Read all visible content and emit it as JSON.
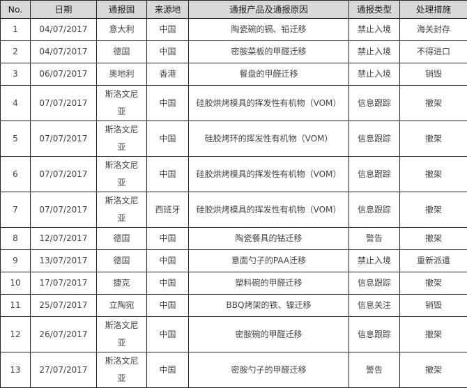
{
  "table": {
    "headers": [
      "No.",
      "日期",
      "通报国",
      "来源地",
      "通报产品及通报原因",
      "通报类型",
      "处理措施"
    ],
    "rows": [
      [
        "1",
        "04/07/2017",
        "意大利",
        "中国",
        "陶瓷碗的镉、铅迁移",
        "禁止入境",
        "海关封存"
      ],
      [
        "2",
        "04/07/2017",
        "德国",
        "中国",
        "密胺菜板的甲醛迁移",
        "禁止入境",
        "不得进口"
      ],
      [
        "3",
        "06/07/2017",
        "奥地利",
        "香港",
        "餐盘的甲醛迁移",
        "禁止入境",
        "销毁"
      ],
      [
        "4",
        "07/07/2017",
        "斯洛文尼亚",
        "中国",
        "硅胶烘烤模具的挥发性有机物（VOM）",
        "信息跟踪",
        "撤架"
      ],
      [
        "5",
        "07/07/2017",
        "斯洛文尼亚",
        "中国",
        "硅胶烤环的挥发性有机物（VOM）",
        "信息跟踪",
        "撤架"
      ],
      [
        "6",
        "07/07/2017",
        "斯洛文尼亚",
        "中国",
        "硅胶烘烤模具的挥发性有机物（VOM）",
        "信息跟踪",
        "撤架"
      ],
      [
        "7",
        "07/07/2017",
        "斯洛文尼亚",
        "西班牙",
        "硅胶烘烤模具的挥发性有机物（VOM）",
        "信息跟踪",
        "撤架"
      ],
      [
        "8",
        "12/07/2017",
        "德国",
        "中国",
        "陶瓷餐具的钴迁移",
        "警告",
        "撤架"
      ],
      [
        "9",
        "13/07/2017",
        "德国",
        "中国",
        "意面勺子的PAA迁移",
        "禁止入境",
        "重新派遣"
      ],
      [
        "10",
        "17/07/2017",
        "捷克",
        "中国",
        "塑料碗的甲醛迁移",
        "信息跟踪",
        "撤架"
      ],
      [
        "11",
        "25/07/2017",
        "立陶宛",
        "中国",
        "BBQ烤架的铁、镍迁移",
        "信息关注",
        "销毁"
      ],
      [
        "12",
        "26/07/2017",
        "斯洛文尼亚",
        "中国",
        "密胺碗的甲醛迁移",
        "信息跟踪",
        "撤架"
      ],
      [
        "13",
        "27/07/2017",
        "斯洛文尼亚",
        "中国",
        "密胺勺子的甲醛迁移",
        "警告",
        "撤架"
      ]
    ]
  }
}
